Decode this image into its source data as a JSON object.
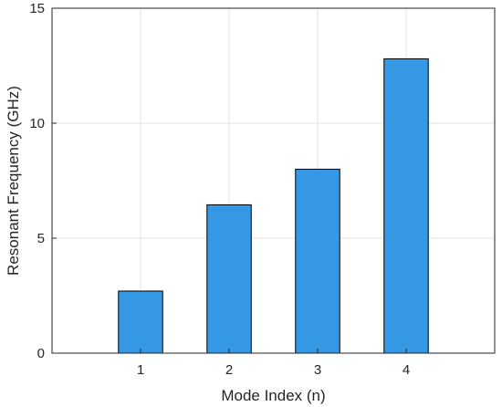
{
  "chart_data": {
    "type": "bar",
    "title": "",
    "xlabel": "Mode Index (n)",
    "ylabel": "Resonant Frequency (GHz)",
    "categories": [
      "1",
      "2",
      "3",
      "4"
    ],
    "values": [
      2.7,
      6.45,
      8.0,
      12.8
    ],
    "xlim": [
      0,
      5
    ],
    "ylim": [
      0,
      15
    ],
    "yticks": [
      0,
      5,
      10,
      15
    ],
    "grid": true,
    "bar_color": "#3598e5",
    "bar_edge_color": "#000000"
  }
}
